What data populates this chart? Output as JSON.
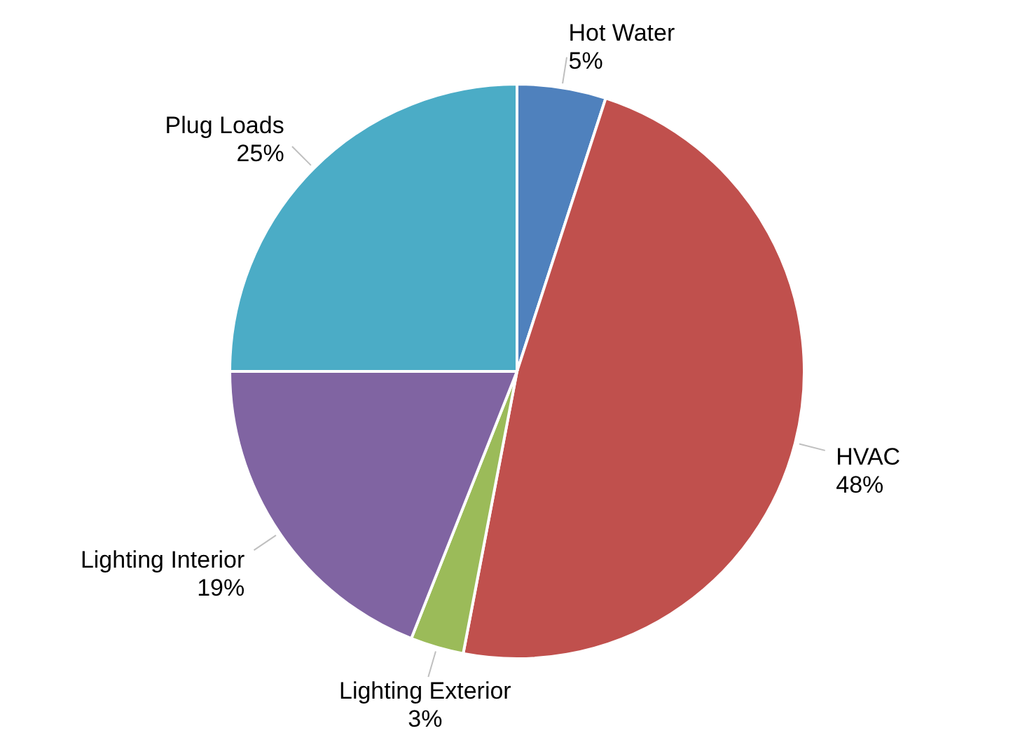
{
  "chart_data": {
    "type": "pie",
    "categories": [
      "Hot Water",
      "HVAC",
      "Lighting Exterior",
      "Lighting Interior",
      "Plug Loads"
    ],
    "values": [
      5,
      48,
      3,
      19,
      25
    ],
    "value_labels": [
      "5%",
      "48%",
      "3%",
      "19%",
      "25%"
    ],
    "colors": [
      "#4f81bd",
      "#c0504d",
      "#9bbb59",
      "#8064a2",
      "#4bacc6"
    ],
    "legend": false
  }
}
